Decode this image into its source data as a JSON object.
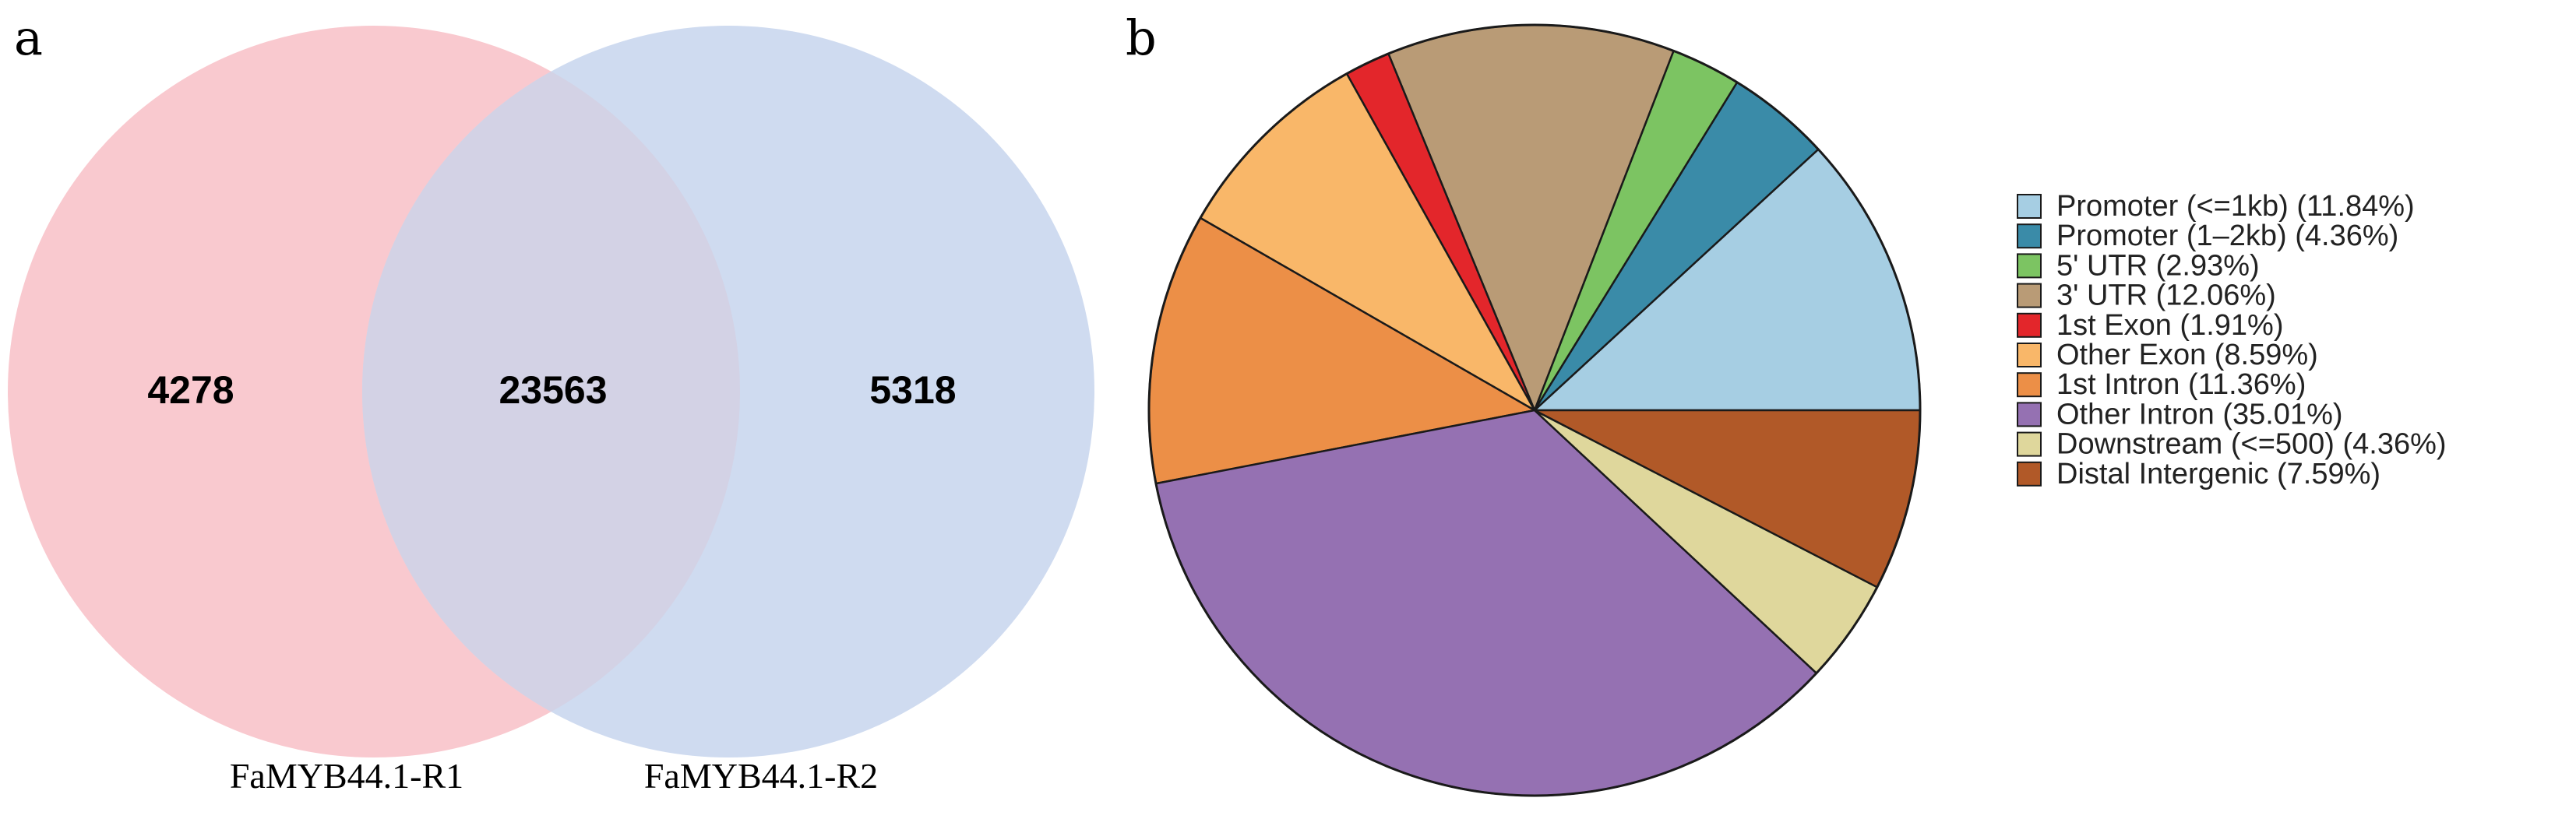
{
  "panels": {
    "a": "a",
    "b": "b"
  },
  "chart_data": [
    {
      "type": "venn",
      "sets": [
        {
          "name": "FaMYB44.1-R1",
          "only_count": "4278",
          "color": "#f9c9cf"
        },
        {
          "name": "FaMYB44.1-R2",
          "only_count": "5318",
          "color": "#cfdbf0"
        }
      ],
      "intersection": {
        "count": "23563",
        "color": "#d3d2e5"
      }
    },
    {
      "type": "pie",
      "categories": [
        "Promoter (<=1kb) (11.84%)",
        "Promoter (1–2kb) (4.36%)",
        "5' UTR (2.93%)",
        "3' UTR (12.06%)",
        "1st Exon (1.91%)",
        "Other Exon (8.59%)",
        "1st Intron (11.36%)",
        "Other Intron (35.01%)",
        "Downstream (<=500) (4.36%)",
        "Distal Intergenic (7.59%)"
      ],
      "values": [
        11.84,
        4.36,
        2.93,
        12.06,
        1.91,
        8.59,
        11.36,
        35.01,
        4.36,
        7.59
      ],
      "colors": [
        "#a6cee3",
        "#3a8ba8",
        "#7cc462",
        "#b99b76",
        "#e3262b",
        "#f9b769",
        "#ec8f47",
        "#9571b2",
        "#dfd79c",
        "#b15928"
      ],
      "start_direction": "right (3 o'clock), counter-clockwise",
      "legend_position": "right"
    }
  ]
}
